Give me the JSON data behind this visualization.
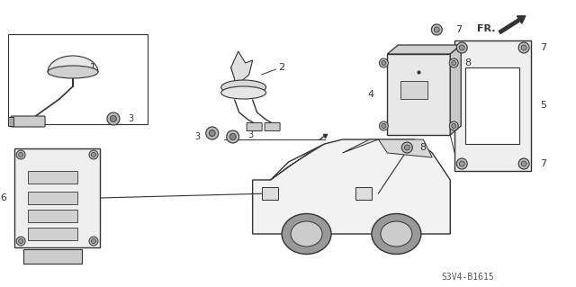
{
  "bg_color": "#ffffff",
  "line_color": "#333333",
  "diagram_code": "S3V4-B1615",
  "title_text": "S3V4-B1615"
}
